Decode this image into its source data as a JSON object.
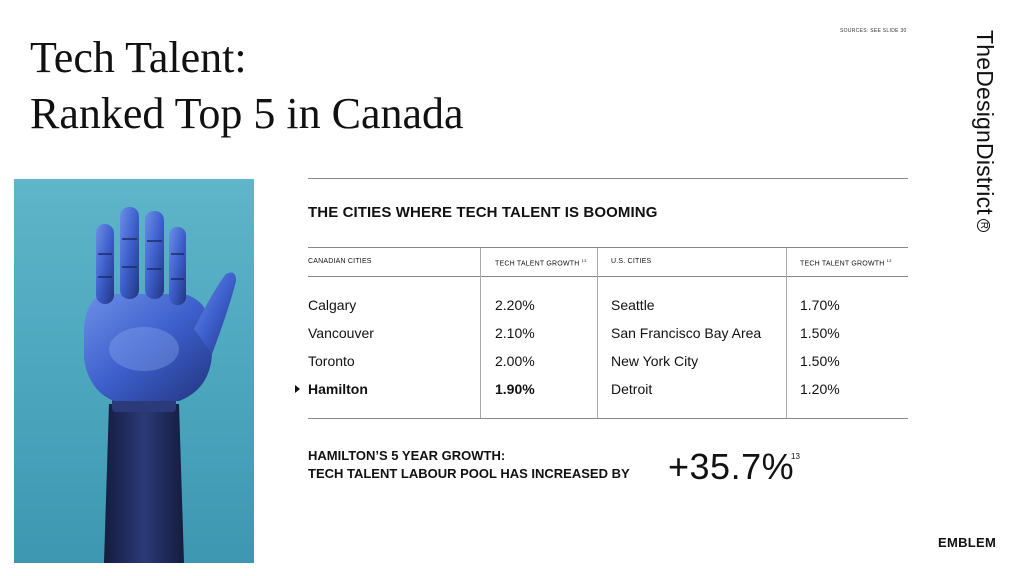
{
  "header": {
    "title_line1": "Tech Talent:",
    "title_line2": "Ranked Top 5 in Canada",
    "sources": "SOURCES: SEE SLIDE 30"
  },
  "brand": {
    "name": "TheDesignDistrict",
    "registered_symbol": "R"
  },
  "table": {
    "heading": "THE CITIES WHERE TECH TALENT IS BOOMING",
    "columns": {
      "canadian_cities": "CANADIAN CITIES",
      "tech_growth_ca": "TECH TALENT GROWTH",
      "tech_growth_ca_sup": "13",
      "us_cities": "U.S. CITIES",
      "tech_growth_us": "TECH TALENT GROWTH",
      "tech_growth_us_sup": "13"
    },
    "rows": [
      {
        "ca_city": "Calgary",
        "ca_growth": "2.20%",
        "us_city": "Seattle",
        "us_growth": "1.70%"
      },
      {
        "ca_city": "Vancouver",
        "ca_growth": "2.10%",
        "us_city": "San Francisco Bay Area",
        "us_growth": "1.50%"
      },
      {
        "ca_city": "Toronto",
        "ca_growth": "2.00%",
        "us_city": "New York City",
        "us_growth": "1.50%"
      },
      {
        "ca_city": "Hamilton",
        "ca_growth": "1.90%",
        "us_city": "Detroit",
        "us_growth": "1.20%"
      }
    ]
  },
  "growth": {
    "line1": "HAMILTON’S 5 YEAR GROWTH:",
    "line2": "TECH TALENT LABOUR POOL HAS INCREASED BY",
    "value": "+35.7%",
    "sup": "13"
  },
  "footer": {
    "emblem": "EMBLEM"
  },
  "colors": {
    "photo_bg": "#4aa5bd",
    "hand_blue": "#3b5fc8",
    "sleeve": "#1e2a5a"
  },
  "image": {
    "subject": "robotic-hand"
  }
}
